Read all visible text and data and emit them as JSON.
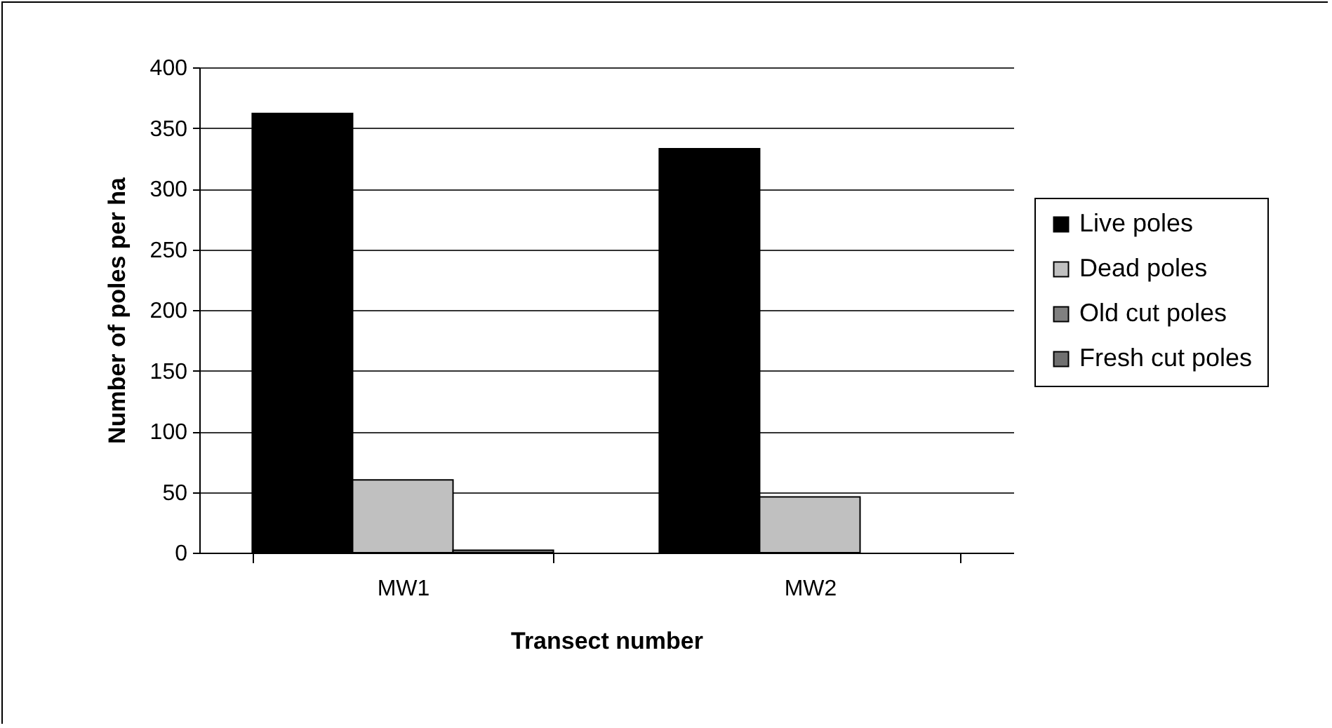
{
  "chart_data": {
    "type": "bar",
    "xlabel": "Transect number",
    "ylabel": "Number of poles per ha",
    "categories": [
      "MW1",
      "MW2"
    ],
    "series": [
      {
        "name": "Live poles",
        "color": "#000000",
        "values": [
          362,
          333
        ]
      },
      {
        "name": "Dead poles",
        "color": "#c0c0c0",
        "values": [
          60,
          46
        ]
      },
      {
        "name": "Old cut poles",
        "color": "#808080",
        "values": [
          2,
          null
        ]
      },
      {
        "name": "Fresh cut poles",
        "color": "#707070",
        "values": [
          null,
          null
        ]
      }
    ],
    "ylim": [
      0,
      400
    ],
    "yticks": [
      0,
      50,
      100,
      150,
      200,
      250,
      300,
      350,
      400
    ],
    "grid": "y",
    "legend": "right"
  }
}
